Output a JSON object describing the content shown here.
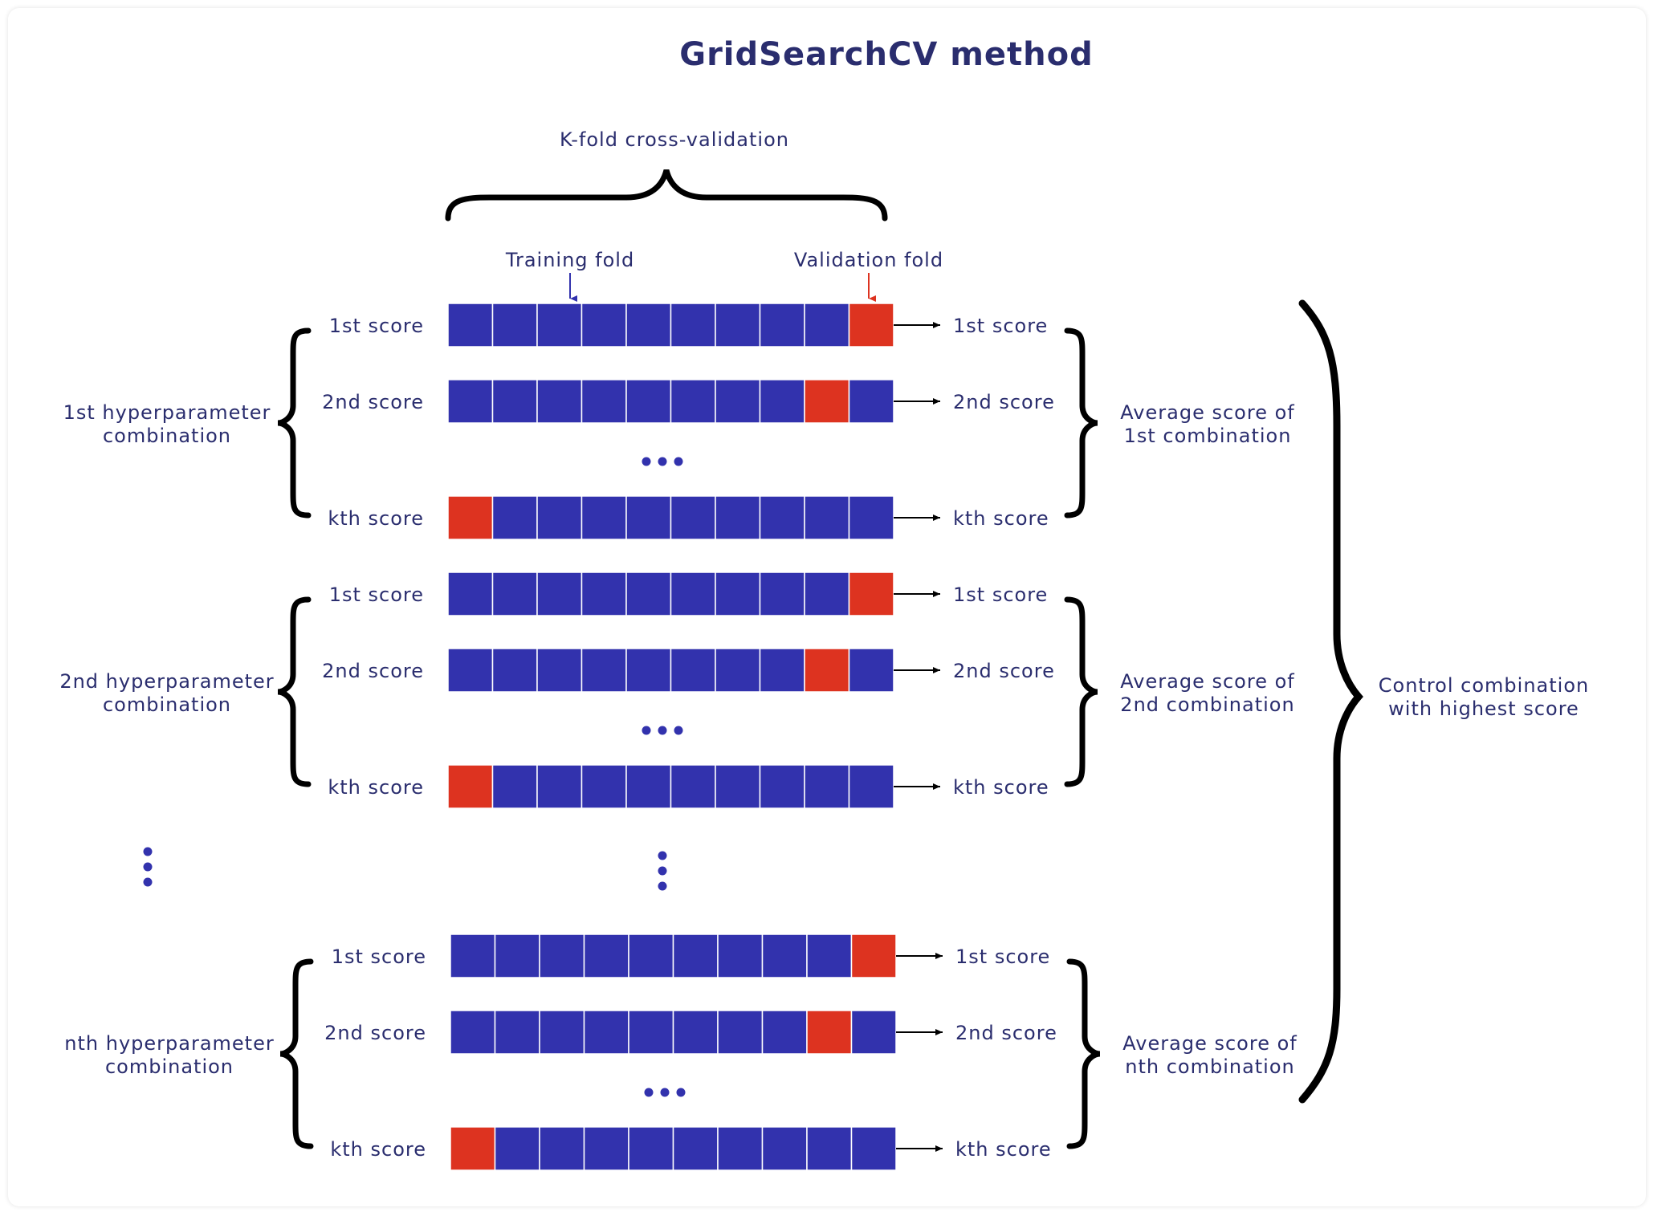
{
  "title": "GridSearchCV method",
  "kfold_label": "K-fold cross-validation",
  "training_fold_label": "Training fold",
  "validation_fold_label": "Validation fold",
  "colors": {
    "training": "#3232ad",
    "validation": "#dd3320",
    "text": "#2a2d6e",
    "brace": "#000000",
    "dots": "#3232ad"
  },
  "fold_count": 10,
  "combinations": [
    {
      "label_line1": "1st hyperparameter",
      "label_line2": "combination",
      "avg_line1": "Average score of",
      "avg_line2": "1st combination",
      "rows": [
        {
          "score_label": "1st score",
          "validation_index": 9
        },
        {
          "score_label": "2nd score",
          "validation_index": 8
        },
        {
          "score_label": "kth score",
          "validation_index": 0
        }
      ]
    },
    {
      "label_line1": "2nd hyperparameter",
      "label_line2": "combination",
      "avg_line1": "Average score of",
      "avg_line2": "2nd combination",
      "rows": [
        {
          "score_label": "1st score",
          "validation_index": 9
        },
        {
          "score_label": "2nd score",
          "validation_index": 8
        },
        {
          "score_label": "kth score",
          "validation_index": 0
        }
      ]
    },
    {
      "label_line1": "nth hyperparameter",
      "label_line2": "combination",
      "avg_line1": "Average score of",
      "avg_line2": "nth combination",
      "rows": [
        {
          "score_label": "1st score",
          "validation_index": 9
        },
        {
          "score_label": "2nd score",
          "validation_index": 8
        },
        {
          "score_label": "kth score",
          "validation_index": 0
        }
      ]
    }
  ],
  "final_line1": "Control combination",
  "final_line2": "with highest score"
}
